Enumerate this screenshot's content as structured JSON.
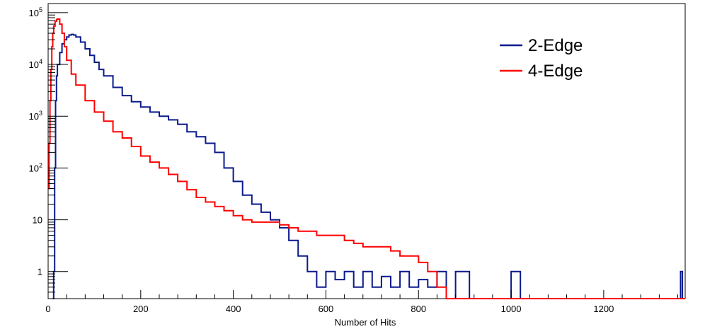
{
  "chart_data": {
    "type": "line",
    "style": "histogram-step",
    "title": "",
    "xlabel": "Number of Hits",
    "ylabel": "",
    "xlim": [
      0,
      1376
    ],
    "ylim": [
      0.3,
      150000
    ],
    "yscale": "log",
    "grid": false,
    "legend_position": "top-right",
    "x_ticks": [
      {
        "value": 0,
        "label": "0"
      },
      {
        "value": 200,
        "label": "200"
      },
      {
        "value": 400,
        "label": "400"
      },
      {
        "value": 600,
        "label": "600"
      },
      {
        "value": 800,
        "label": "800"
      },
      {
        "value": 1000,
        "label": "1000"
      },
      {
        "value": 1200,
        "label": "1200"
      }
    ],
    "y_ticks": [
      {
        "value": 1,
        "base": "1",
        "exp": ""
      },
      {
        "value": 10,
        "base": "10",
        "exp": ""
      },
      {
        "value": 100,
        "base": "10",
        "exp": "2"
      },
      {
        "value": 1000,
        "base": "10",
        "exp": "3"
      },
      {
        "value": 10000,
        "base": "10",
        "exp": "4"
      },
      {
        "value": 100000,
        "base": "10",
        "exp": "5"
      }
    ],
    "series": [
      {
        "name": "2-Edge",
        "color": "#0a1a8c",
        "points": [
          [
            10,
            0.3
          ],
          [
            12,
            1
          ],
          [
            14,
            100
          ],
          [
            16,
            2000
          ],
          [
            18,
            6000
          ],
          [
            20,
            10000
          ],
          [
            25,
            17000
          ],
          [
            30,
            25000
          ],
          [
            35,
            30000
          ],
          [
            40,
            34000
          ],
          [
            45,
            37000
          ],
          [
            50,
            38000
          ],
          [
            55,
            37000
          ],
          [
            60,
            34000
          ],
          [
            70,
            27000
          ],
          [
            80,
            20000
          ],
          [
            90,
            15000
          ],
          [
            100,
            11000
          ],
          [
            110,
            8000
          ],
          [
            120,
            6000
          ],
          [
            140,
            3600
          ],
          [
            160,
            2500
          ],
          [
            180,
            1900
          ],
          [
            200,
            1500
          ],
          [
            220,
            1200
          ],
          [
            240,
            1000
          ],
          [
            260,
            850
          ],
          [
            280,
            700
          ],
          [
            300,
            500
          ],
          [
            320,
            400
          ],
          [
            340,
            300
          ],
          [
            360,
            200
          ],
          [
            380,
            100
          ],
          [
            400,
            55
          ],
          [
            420,
            30
          ],
          [
            440,
            20
          ],
          [
            460,
            14
          ],
          [
            480,
            10
          ],
          [
            500,
            7
          ],
          [
            520,
            4
          ],
          [
            540,
            2
          ],
          [
            560,
            1
          ],
          [
            580,
            0.5
          ],
          [
            600,
            1
          ],
          [
            620,
            0.7
          ],
          [
            640,
            1
          ],
          [
            660,
            0.5
          ],
          [
            680,
            1
          ],
          [
            700,
            0.5
          ],
          [
            720,
            0.8
          ],
          [
            740,
            0.5
          ],
          [
            760,
            1
          ],
          [
            780,
            0.5
          ],
          [
            800,
            0.7
          ],
          [
            820,
            0.5
          ],
          [
            840,
            1
          ],
          [
            860,
            0.3
          ],
          [
            880,
            1
          ],
          [
            900,
            1
          ],
          [
            910,
            0.3
          ],
          [
            1000,
            1
          ],
          [
            1010,
            1
          ],
          [
            1020,
            0.3
          ],
          [
            1366,
            1
          ],
          [
            1370,
            0.3
          ]
        ]
      },
      {
        "name": "4-Edge",
        "color": "#ff0000",
        "points": [
          [
            0,
            40
          ],
          [
            2,
            300
          ],
          [
            4,
            2000
          ],
          [
            6,
            8000
          ],
          [
            8,
            22000
          ],
          [
            10,
            40000
          ],
          [
            12,
            55000
          ],
          [
            15,
            68000
          ],
          [
            18,
            74000
          ],
          [
            20,
            75000
          ],
          [
            25,
            60000
          ],
          [
            30,
            40000
          ],
          [
            35,
            22000
          ],
          [
            40,
            12000
          ],
          [
            50,
            6500
          ],
          [
            60,
            4000
          ],
          [
            80,
            2000
          ],
          [
            100,
            1200
          ],
          [
            120,
            800
          ],
          [
            140,
            500
          ],
          [
            160,
            380
          ],
          [
            180,
            260
          ],
          [
            200,
            170
          ],
          [
            220,
            130
          ],
          [
            240,
            100
          ],
          [
            260,
            75
          ],
          [
            280,
            55
          ],
          [
            300,
            38
          ],
          [
            320,
            27
          ],
          [
            340,
            22
          ],
          [
            360,
            18
          ],
          [
            380,
            15
          ],
          [
            400,
            12
          ],
          [
            420,
            10
          ],
          [
            440,
            9
          ],
          [
            460,
            9
          ],
          [
            480,
            9
          ],
          [
            500,
            8
          ],
          [
            520,
            7
          ],
          [
            540,
            6
          ],
          [
            560,
            6
          ],
          [
            580,
            5
          ],
          [
            600,
            5
          ],
          [
            620,
            5
          ],
          [
            640,
            4
          ],
          [
            660,
            3.5
          ],
          [
            680,
            3
          ],
          [
            700,
            3
          ],
          [
            720,
            3
          ],
          [
            740,
            2.5
          ],
          [
            760,
            2
          ],
          [
            780,
            2
          ],
          [
            800,
            1.5
          ],
          [
            820,
            1
          ],
          [
            840,
            0.5
          ],
          [
            860,
            0.3
          ],
          [
            1376,
            0.3
          ]
        ]
      }
    ]
  }
}
